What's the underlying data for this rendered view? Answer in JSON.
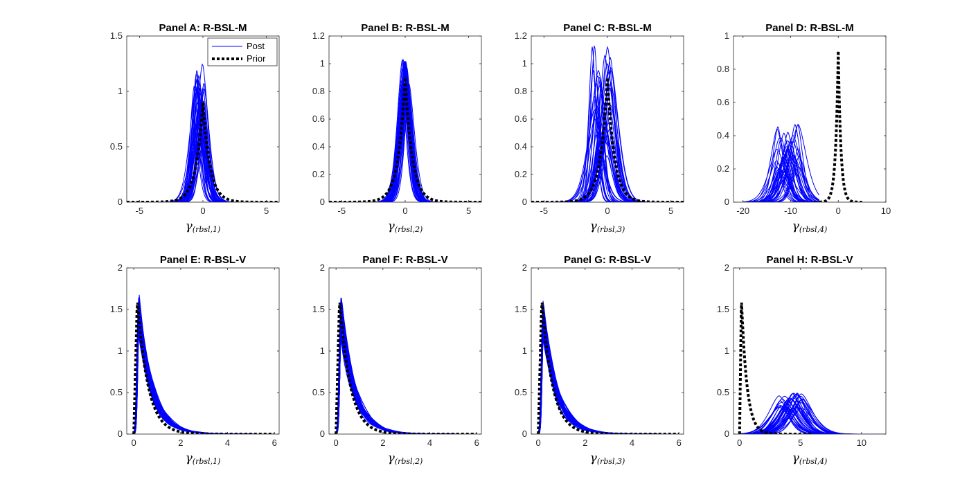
{
  "figure": {
    "legend": {
      "post_label": "Post",
      "prior_label": "Prior",
      "panel_index": 0,
      "location": "top-right"
    },
    "colors": {
      "post": "#0000ff",
      "prior": "#000000",
      "axes": "#262626"
    }
  },
  "chart_data": [
    {
      "type": "line",
      "title": "Panel A: R-BSL-M",
      "xlabel": {
        "symbol": "γ",
        "subscript": "(rbsl,1)"
      },
      "xlim": [
        -6,
        6
      ],
      "ylim": [
        0,
        1.5
      ],
      "xticks": [
        -5,
        0,
        5
      ],
      "yticks": [
        0,
        0.5,
        1,
        1.5
      ],
      "series": [
        {
          "name": "Post",
          "kind": "posterior-family",
          "count": 40,
          "center_range": [
            -0.7,
            0.1
          ],
          "width_range": [
            0.35,
            0.75
          ],
          "peak_range": [
            0.55,
            1.25
          ],
          "shape": "symmetric"
        },
        {
          "name": "Prior",
          "kind": "laplace",
          "center": 0,
          "peak": 0.9,
          "scale": 0.55,
          "xrange": [
            -6,
            6
          ]
        }
      ]
    },
    {
      "type": "line",
      "title": "Panel B: R-BSL-M",
      "xlabel": {
        "symbol": "γ",
        "subscript": "(rbsl,2)"
      },
      "xlim": [
        -6,
        6
      ],
      "ylim": [
        0,
        1.2
      ],
      "xticks": [
        -5,
        0,
        5
      ],
      "yticks": [
        0,
        0.2,
        0.4,
        0.6,
        0.8,
        1,
        1.2
      ],
      "series": [
        {
          "name": "Post",
          "kind": "posterior-family",
          "count": 40,
          "center_range": [
            -0.3,
            0.3
          ],
          "width_range": [
            0.45,
            0.7
          ],
          "peak_range": [
            0.7,
            1.04
          ],
          "shape": "symmetric"
        },
        {
          "name": "Prior",
          "kind": "laplace",
          "center": 0,
          "peak": 0.9,
          "scale": 0.55,
          "xrange": [
            -6,
            6
          ]
        }
      ]
    },
    {
      "type": "line",
      "title": "Panel C: R-BSL-M",
      "xlabel": {
        "symbol": "γ",
        "subscript": "(rbsl,3)"
      },
      "xlim": [
        -6,
        6
      ],
      "ylim": [
        0,
        1.2
      ],
      "xticks": [
        -5,
        0,
        5
      ],
      "yticks": [
        0,
        0.2,
        0.4,
        0.6,
        0.8,
        1,
        1.2
      ],
      "series": [
        {
          "name": "Post",
          "kind": "posterior-family",
          "count": 40,
          "center_range": [
            -1.2,
            0.3
          ],
          "width_range": [
            0.35,
            1.0
          ],
          "peak_range": [
            0.3,
            1.14
          ],
          "shape": "symmetric"
        },
        {
          "name": "Prior",
          "kind": "laplace",
          "center": 0,
          "peak": 0.9,
          "scale": 0.55,
          "xrange": [
            -6,
            6
          ]
        }
      ]
    },
    {
      "type": "line",
      "title": "Panel D: R-BSL-M",
      "xlabel": {
        "symbol": "γ",
        "subscript": "(rbsl,4)"
      },
      "xlim": [
        -22,
        10
      ],
      "ylim": [
        0,
        1
      ],
      "xticks": [
        -20,
        -10,
        0,
        10
      ],
      "yticks": [
        0,
        0.2,
        0.4,
        0.6,
        0.8,
        1
      ],
      "series": [
        {
          "name": "Post",
          "kind": "posterior-family",
          "count": 40,
          "center_range": [
            -13,
            -8
          ],
          "width_range": [
            1.3,
            2.6
          ],
          "peak_range": [
            0.15,
            0.48
          ],
          "shape": "symmetric",
          "xrange": [
            -20,
            -4
          ]
        },
        {
          "name": "Prior",
          "kind": "laplace",
          "center": 0,
          "peak": 0.91,
          "scale": 0.55,
          "xrange": [
            -5,
            5
          ]
        }
      ]
    },
    {
      "type": "line",
      "title": "Panel E: R-BSL-V",
      "xlabel": {
        "symbol": "γ",
        "subscript": "(rbsl,1)"
      },
      "xlim": [
        -0.3,
        6.2
      ],
      "ylim": [
        0,
        2
      ],
      "xticks": [
        0,
        2,
        4,
        6
      ],
      "yticks": [
        0,
        0.5,
        1,
        1.5,
        2
      ],
      "series": [
        {
          "name": "Post",
          "kind": "posterior-family",
          "count": 40,
          "center_range": [
            0.18,
            0.24
          ],
          "width_range": [
            0.55,
            0.62
          ],
          "peak_range": [
            1.38,
            1.5
          ],
          "shape": "skewed",
          "xrange": [
            -0.1,
            6
          ]
        },
        {
          "name": "Prior",
          "kind": "skewed",
          "mode": 0.15,
          "peak": 1.63,
          "xrange": [
            0,
            6
          ]
        }
      ]
    },
    {
      "type": "line",
      "title": "Panel F: R-BSL-V",
      "xlabel": {
        "symbol": "γ",
        "subscript": "(rbsl,2)"
      },
      "xlim": [
        -0.3,
        6.2
      ],
      "ylim": [
        0,
        2
      ],
      "xticks": [
        0,
        2,
        4,
        6
      ],
      "yticks": [
        0,
        0.5,
        1,
        1.5,
        2
      ],
      "series": [
        {
          "name": "Post",
          "kind": "posterior-family",
          "count": 40,
          "center_range": [
            0.18,
            0.24
          ],
          "width_range": [
            0.55,
            0.62
          ],
          "peak_range": [
            1.35,
            1.48
          ],
          "shape": "skewed",
          "xrange": [
            -0.1,
            6
          ]
        },
        {
          "name": "Prior",
          "kind": "skewed",
          "mode": 0.15,
          "peak": 1.63,
          "xrange": [
            0,
            6
          ]
        }
      ]
    },
    {
      "type": "line",
      "title": "Panel G: R-BSL-V",
      "xlabel": {
        "symbol": "γ",
        "subscript": "(rbsl,3)"
      },
      "xlim": [
        -0.3,
        6.2
      ],
      "ylim": [
        0,
        2
      ],
      "xticks": [
        0,
        2,
        4,
        6
      ],
      "yticks": [
        0,
        0.5,
        1,
        1.5,
        2
      ],
      "series": [
        {
          "name": "Post",
          "kind": "posterior-family",
          "count": 40,
          "center_range": [
            0.18,
            0.24
          ],
          "width_range": [
            0.55,
            0.64
          ],
          "peak_range": [
            1.32,
            1.46
          ],
          "shape": "skewed",
          "xrange": [
            -0.1,
            6
          ]
        },
        {
          "name": "Prior",
          "kind": "skewed",
          "mode": 0.15,
          "peak": 1.63,
          "xrange": [
            0,
            6
          ]
        }
      ]
    },
    {
      "type": "line",
      "title": "Panel H: R-BSL-V",
      "xlabel": {
        "symbol": "γ",
        "subscript": "(rbsl,4)"
      },
      "xlim": [
        -0.5,
        12
      ],
      "ylim": [
        0,
        2
      ],
      "xticks": [
        0,
        5,
        10
      ],
      "yticks": [
        0,
        0.5,
        1,
        1.5,
        2
      ],
      "series": [
        {
          "name": "Post",
          "kind": "posterior-family",
          "count": 40,
          "center_range": [
            3.2,
            5.2
          ],
          "width_range": [
            0.9,
            1.4
          ],
          "peak_range": [
            0.3,
            0.5
          ],
          "shape": "symmetric",
          "xrange": [
            0,
            12
          ]
        },
        {
          "name": "Prior",
          "kind": "skewed",
          "mode": 0.15,
          "peak": 1.63,
          "xrange": [
            0,
            6
          ]
        }
      ]
    }
  ]
}
